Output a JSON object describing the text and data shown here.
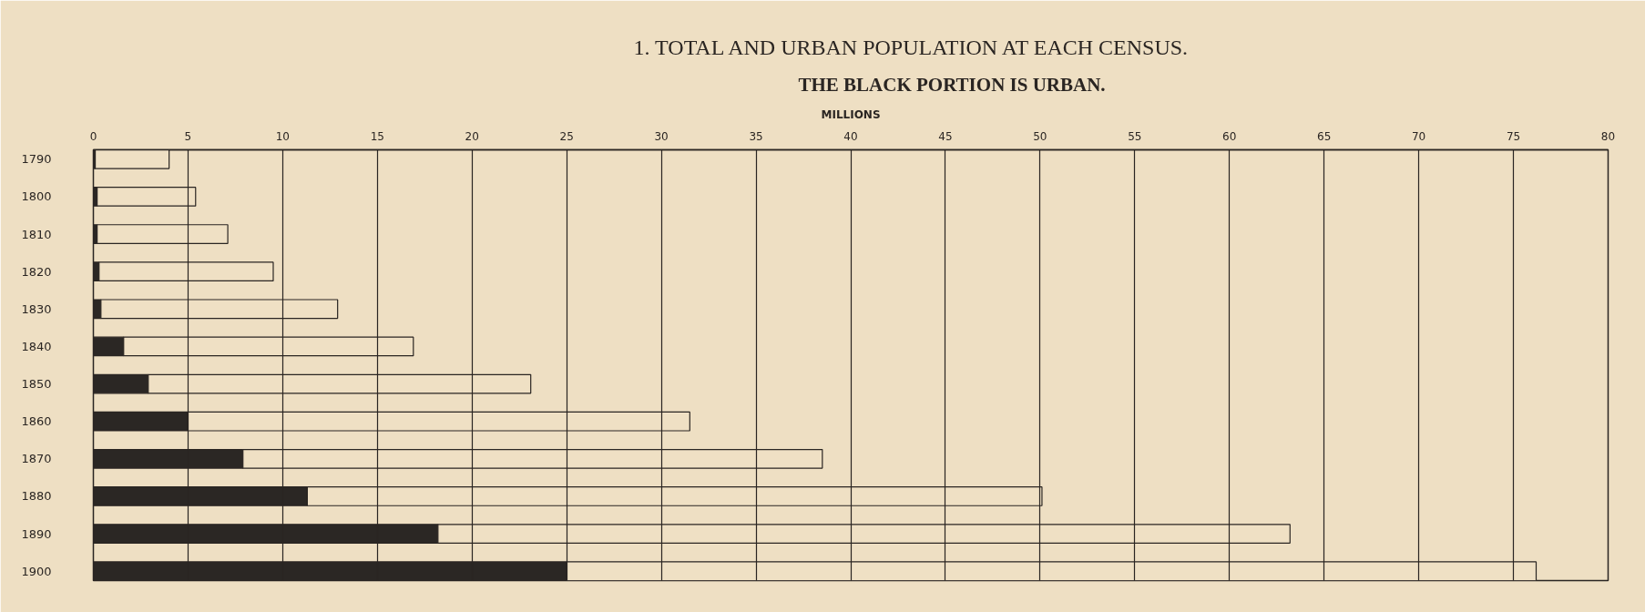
{
  "chart_data": {
    "type": "bar",
    "orientation": "horizontal",
    "stacked": true,
    "title": "1. TOTAL AND URBAN POPULATION AT EACH CENSUS.",
    "subtitle": "THE BLACK PORTION IS URBAN.",
    "xlabel": "MILLIONS",
    "categories": [
      "1790",
      "1800",
      "1810",
      "1820",
      "1830",
      "1840",
      "1850",
      "1860",
      "1870",
      "1880",
      "1890",
      "1900"
    ],
    "series": [
      {
        "color": "#2b2724",
        "values": [
          0.1,
          0.2,
          0.2,
          0.3,
          0.4,
          1.6,
          2.9,
          5.0,
          7.9,
          11.3,
          18.2,
          25.0
        ]
      },
      {
        "color": "#efe0c4",
        "values": [
          3.9,
          5.2,
          6.9,
          9.2,
          12.5,
          15.3,
          20.2,
          26.5,
          30.6,
          38.8,
          45.0,
          51.2
        ]
      }
    ],
    "xlim": [
      0,
      80
    ],
    "xticks": [
      0,
      5,
      10,
      15,
      20,
      25,
      30,
      35,
      40,
      45,
      50,
      55,
      60,
      65,
      70,
      75,
      80
    ],
    "grid": "x"
  }
}
